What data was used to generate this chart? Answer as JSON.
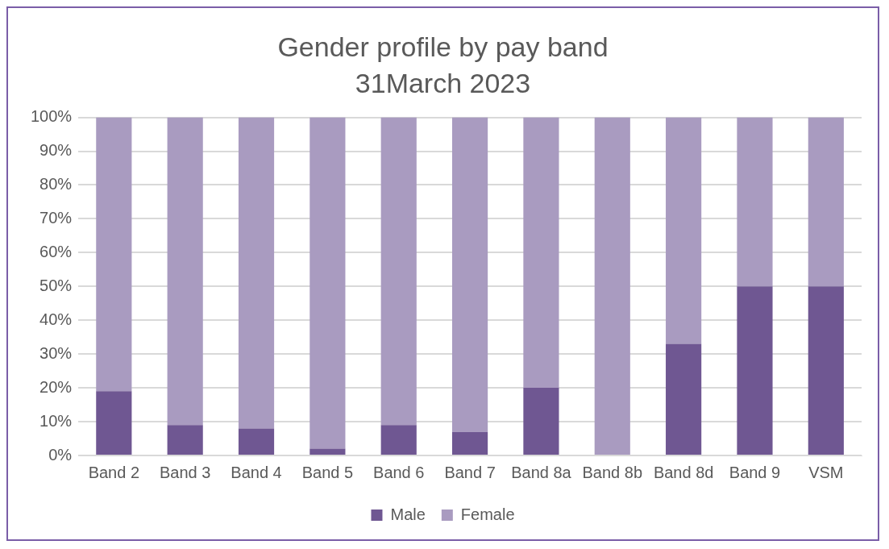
{
  "chart_data": {
    "type": "bar",
    "title": "Gender profile by pay band",
    "subtitle": "31March 2023",
    "categories": [
      "Band 2",
      "Band 3",
      "Band 4",
      "Band 5",
      "Band 6",
      "Band 7",
      "Band 8a",
      "Band 8b",
      "Band 8d",
      "Band 9",
      "VSM"
    ],
    "stacked": true,
    "series": [
      {
        "name": "Male",
        "color": "#6f5792",
        "values": [
          19,
          9,
          8,
          2,
          9,
          7,
          20,
          0,
          33,
          50,
          50
        ]
      },
      {
        "name": "Female",
        "color": "#a99bc0",
        "values": [
          81,
          91,
          92,
          98,
          91,
          93,
          80,
          100,
          67,
          50,
          50
        ]
      }
    ],
    "ylim": [
      0,
      100
    ],
    "yticks": [
      {
        "value": 0,
        "label": "0%"
      },
      {
        "value": 10,
        "label": "10%"
      },
      {
        "value": 20,
        "label": "20%"
      },
      {
        "value": 30,
        "label": "30%"
      },
      {
        "value": 40,
        "label": "40%"
      },
      {
        "value": 50,
        "label": "50%"
      },
      {
        "value": 60,
        "label": "60%"
      },
      {
        "value": 70,
        "label": "70%"
      },
      {
        "value": 80,
        "label": "80%"
      },
      {
        "value": 90,
        "label": "90%"
      },
      {
        "value": 100,
        "label": "100%"
      }
    ],
    "grid": "y",
    "legend": "bottom"
  }
}
